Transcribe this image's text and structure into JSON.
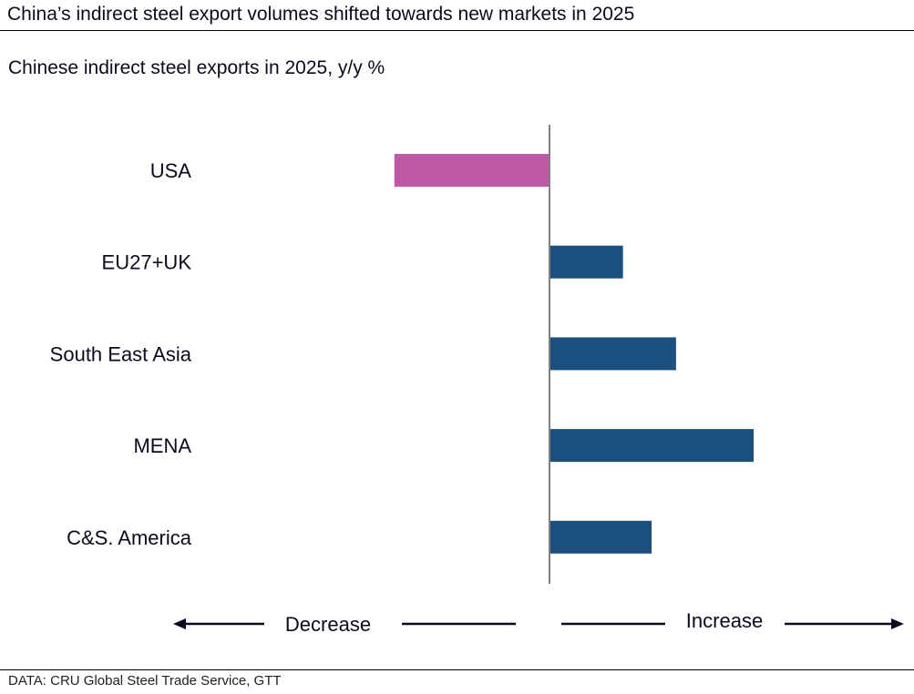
{
  "title": "China’s indirect steel export volumes shifted towards new markets in 2025",
  "source": "DATA: CRU Global Steel Trade Service, GTT",
  "chart_data": {
    "type": "bar",
    "orientation": "horizontal",
    "title": "Chinese indirect steel exports in 2025, y/y %",
    "categories": [
      "USA",
      "EU27+UK",
      "South East Asia",
      "MENA",
      "C&S. America"
    ],
    "values": [
      -76,
      36,
      62,
      100,
      50
    ],
    "value_note": "relative magnitudes, no numeric axis shown",
    "xlim": [
      -120,
      150
    ],
    "grid": false,
    "direction_labels": {
      "negative": "Decrease",
      "positive": "Increase"
    },
    "colors": {
      "negative": "#BE5AA5",
      "positive": "#1B4F7E",
      "axis": "#808080"
    }
  }
}
